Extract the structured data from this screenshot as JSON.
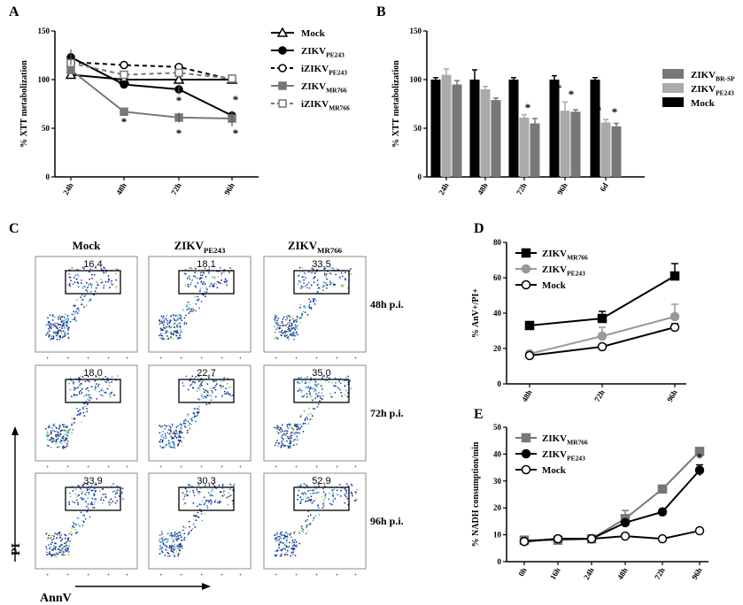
{
  "panels": {
    "A": "A",
    "B": "B",
    "C": "C",
    "D": "D",
    "E": "E"
  },
  "chart_data": [
    {
      "panel": "A",
      "type": "line",
      "ylabel": "% XTT metabolization",
      "categories": [
        "24h",
        "48h",
        "72h",
        "96h"
      ],
      "ylim": [
        0,
        150
      ],
      "yticks": [
        "0",
        "50",
        "100",
        "150"
      ],
      "series": [
        {
          "name": "Mock",
          "sub": "",
          "marker": "triangle-open",
          "color": "#000000",
          "dashed": false,
          "values": [
            105,
            100,
            100,
            100
          ]
        },
        {
          "name": "ZIKV",
          "sub": "PE243",
          "marker": "circle-filled",
          "color": "#000000",
          "dashed": false,
          "values": [
            123,
            95,
            90,
            63
          ]
        },
        {
          "name": "iZIKV",
          "sub": "PE243",
          "marker": "circle-open",
          "color": "#000000",
          "dashed": true,
          "values": [
            118,
            115,
            113,
            100
          ]
        },
        {
          "name": "ZIKV",
          "sub": "MR766",
          "marker": "square-filled",
          "color": "#777777",
          "dashed": false,
          "values": [
            110,
            67,
            61,
            60
          ]
        },
        {
          "name": "iZIKV",
          "sub": "MR766",
          "marker": "square-open",
          "color": "#777777",
          "dashed": true,
          "values": [
            117,
            105,
            107,
            101
          ]
        }
      ],
      "annotations": [
        "*",
        "*",
        "*",
        "*",
        "*"
      ]
    },
    {
      "panel": "B",
      "type": "bar",
      "ylabel": "% XTT metabolization",
      "categories": [
        "24h",
        "48h",
        "72h",
        "96h",
        "6d"
      ],
      "ylim": [
        0,
        150
      ],
      "yticks": [
        "0",
        "50",
        "100",
        "150"
      ],
      "series": [
        {
          "name": "Mock",
          "sub": "",
          "color": "#000000",
          "values": [
            100,
            100,
            100,
            100,
            100
          ],
          "err": [
            2,
            10,
            2,
            4,
            2
          ]
        },
        {
          "name": "ZIKV",
          "sub": "PE243",
          "color": "#aaaaaa",
          "values": [
            105,
            90,
            61,
            68,
            56
          ],
          "err": [
            6,
            3,
            3,
            9,
            3
          ]
        },
        {
          "name": "ZIKV",
          "sub": "BR-SP",
          "color": "#777777",
          "values": [
            95,
            79,
            55,
            67,
            52
          ],
          "err": [
            4,
            2,
            5,
            2,
            3
          ]
        }
      ],
      "annotations": [
        "*",
        "*",
        "*",
        "*",
        "*",
        "*"
      ]
    },
    {
      "panel": "C",
      "type": "table",
      "columns": [
        {
          "name": "Mock",
          "sub": ""
        },
        {
          "name": "ZIKV",
          "sub": "PE243"
        },
        {
          "name": "ZIKV",
          "sub": "MR766"
        }
      ],
      "rows": [
        "48h p.i.",
        "72h p.i.",
        "96h p.i."
      ],
      "values": [
        [
          "16,4",
          "18,1",
          "33,5"
        ],
        [
          "18,0",
          "22,7",
          "35,0"
        ],
        [
          "33,9",
          "30,3",
          "52,9"
        ]
      ],
      "xlabel": "AnnV",
      "ylabel": "PI"
    },
    {
      "panel": "D",
      "type": "line",
      "ylabel": "% AnV+/PI+",
      "categories": [
        "48h",
        "72h",
        "96h"
      ],
      "ylim": [
        0,
        80
      ],
      "yticks": [
        "0",
        "20",
        "40",
        "60",
        "80"
      ],
      "series": [
        {
          "name": "ZIKV",
          "sub": "MR766",
          "marker": "square-filled",
          "color": "#000000",
          "values": [
            33,
            37,
            61
          ],
          "err": [
            0,
            4,
            7
          ]
        },
        {
          "name": "ZIKV",
          "sub": "PE243",
          "marker": "circle-filled",
          "color": "#999999",
          "values": [
            17,
            27,
            38
          ],
          "err": [
            0,
            5,
            7
          ]
        },
        {
          "name": "Mock",
          "sub": "",
          "marker": "circle-open",
          "color": "#000000",
          "values": [
            16,
            21,
            32
          ],
          "err": [
            0,
            0,
            2
          ]
        }
      ]
    },
    {
      "panel": "E",
      "type": "line",
      "ylabel": "% NADH consumption/min",
      "categories": [
        "0h",
        "16h",
        "24h",
        "48h",
        "72h",
        "96h"
      ],
      "ylim": [
        0,
        50
      ],
      "yticks": [
        "0",
        "10",
        "20",
        "30",
        "40",
        "50"
      ],
      "series": [
        {
          "name": "ZIKV",
          "sub": "MR766",
          "marker": "square-filled",
          "color": "#777777",
          "values": [
            8,
            8,
            8.5,
            16,
            27,
            41
          ],
          "err": [
            0,
            0,
            0,
            3,
            0,
            0
          ]
        },
        {
          "name": "ZIKV",
          "sub": "PE243",
          "marker": "circle-filled",
          "color": "#000000",
          "values": [
            7.5,
            8.5,
            8.5,
            14.5,
            18.5,
            34
          ],
          "err": [
            0,
            0,
            0,
            0,
            0,
            2
          ]
        },
        {
          "name": "Mock",
          "sub": "",
          "marker": "circle-open",
          "color": "#000000",
          "values": [
            7.5,
            8.5,
            8.5,
            9.5,
            8.5,
            11.5
          ],
          "err": [
            0,
            0,
            0,
            0,
            0,
            0
          ]
        }
      ],
      "annotations": [
        "*",
        "*"
      ]
    }
  ]
}
